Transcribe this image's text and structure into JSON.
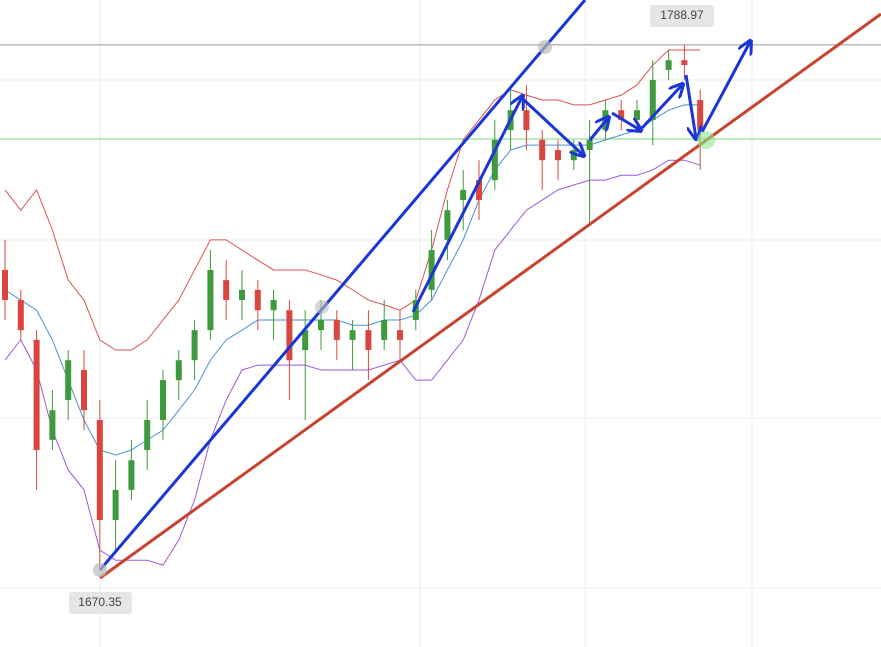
{
  "chart_data": {
    "type": "candlestick",
    "categories": [
      null,
      null,
      null,
      null,
      null,
      null,
      null,
      null,
      null,
      null,
      null,
      null,
      null,
      null,
      null,
      null,
      null,
      null,
      null,
      null,
      null,
      null,
      null,
      null,
      null,
      null,
      null,
      null,
      null,
      null,
      null,
      null,
      null,
      null,
      null,
      null,
      null,
      null,
      null,
      null,
      null,
      null,
      null,
      null,
      null
    ],
    "open": [
      1738.1,
      1731.3,
      1722.3,
      1699.7,
      1708.7,
      1715.5,
      1704.2,
      1681.6,
      1688.4,
      1697.4,
      1704.2,
      1713.2,
      1717.7,
      1724.5,
      1735.8,
      1731.3,
      1733.6,
      1729.0,
      1729.0,
      1720.0,
      1724.5,
      1726.8,
      1722.3,
      1724.5,
      1722.3,
      1724.5,
      1726.8,
      1733.6,
      1744.9,
      1753.9,
      1758.4,
      1758.4,
      1769.7,
      1774.2,
      1767.5,
      1765.2,
      1762.9,
      1765.2,
      1769.7,
      1774.2,
      1772.0,
      1772.0,
      1783.3,
      1785.5,
      1776.5
    ],
    "high": [
      1744.9,
      1733.6,
      1724.5,
      1711.0,
      1720.0,
      1720.0,
      1708.7,
      1695.1,
      1699.7,
      1708.7,
      1715.5,
      1720.0,
      1726.8,
      1742.6,
      1740.3,
      1738.1,
      1735.8,
      1733.6,
      1731.3,
      1729.0,
      1731.3,
      1729.0,
      1726.8,
      1729.0,
      1731.3,
      1729.0,
      1733.6,
      1747.1,
      1753.9,
      1760.7,
      1762.9,
      1772.0,
      1778.8,
      1779.9,
      1769.7,
      1767.5,
      1767.5,
      1772.0,
      1776.5,
      1776.5,
      1776.5,
      1785.5,
      1787.8,
      1788.97,
      1778.8
    ],
    "low": [
      1726.8,
      1722.3,
      1688.4,
      1697.4,
      1704.2,
      1701.9,
      1670.35,
      1674.8,
      1686.1,
      1692.9,
      1699.7,
      1708.7,
      1713.2,
      1722.3,
      1726.8,
      1726.8,
      1724.5,
      1722.3,
      1708.7,
      1704.2,
      1720.0,
      1717.7,
      1715.5,
      1713.2,
      1720.0,
      1717.7,
      1724.5,
      1731.3,
      1740.3,
      1747.1,
      1749.4,
      1756.2,
      1765.2,
      1765.2,
      1756.2,
      1758.4,
      1760.7,
      1748.3,
      1767.5,
      1769.7,
      1769.7,
      1766.3,
      1781.0,
      1781.0,
      1760.7
    ],
    "close": [
      1731.3,
      1724.5,
      1697.4,
      1706.4,
      1717.7,
      1706.4,
      1681.6,
      1688.4,
      1695.1,
      1704.2,
      1713.2,
      1717.7,
      1724.5,
      1738.1,
      1731.3,
      1733.6,
      1729.0,
      1731.3,
      1717.7,
      1724.5,
      1726.8,
      1722.3,
      1724.5,
      1720.0,
      1726.8,
      1722.3,
      1731.3,
      1742.6,
      1751.6,
      1756.2,
      1753.9,
      1767.5,
      1774.2,
      1769.7,
      1762.9,
      1762.9,
      1765.2,
      1767.5,
      1774.2,
      1772.0,
      1774.2,
      1781.0,
      1785.5,
      1784.4,
      1769.7
    ],
    "up_color": "#3d9a3d",
    "down_color": "#d9463f",
    "series": [
      {
        "color": "#d9534f",
        "values": [
          1756.2,
          1751.6,
          1756.2,
          1747.1,
          1735.8,
          1731.3,
          1722.3,
          1720.0,
          1720.0,
          1722.3,
          1726.8,
          1731.3,
          1738.1,
          1744.9,
          1744.9,
          1742.6,
          1740.3,
          1738.1,
          1738.1,
          1738.1,
          1737.0,
          1735.8,
          1733.6,
          1731.3,
          1730.2,
          1729.0,
          1731.3,
          1742.6,
          1756.2,
          1767.5,
          1772.0,
          1776.5,
          1778.8,
          1777.6,
          1776.5,
          1776.5,
          1775.4,
          1775.4,
          1776.5,
          1777.6,
          1779.9,
          1784.4,
          1787.8,
          1787.8,
          1787.8
        ]
      },
      {
        "color": "#4a90d9",
        "values": [
          1733.6,
          1731.3,
          1729.0,
          1722.3,
          1713.2,
          1704.2,
          1697.4,
          1696.3,
          1697.4,
          1699.7,
          1701.9,
          1706.4,
          1711.0,
          1717.7,
          1722.3,
          1724.5,
          1726.8,
          1726.8,
          1726.8,
          1726.8,
          1726.8,
          1726.8,
          1725.6,
          1725.6,
          1726.8,
          1726.8,
          1727.9,
          1731.3,
          1738.1,
          1744.9,
          1753.9,
          1760.7,
          1765.2,
          1766.3,
          1766.3,
          1766.3,
          1766.3,
          1766.3,
          1767.5,
          1768.6,
          1769.7,
          1772.0,
          1774.2,
          1775.4,
          1775.4
        ]
      },
      {
        "color": "#9b59d6",
        "values": [
          1717.7,
          1722.3,
          1715.5,
          1701.9,
          1692.9,
          1688.4,
          1674.8,
          1672.5,
          1672.5,
          1672.5,
          1671.4,
          1677.1,
          1686.1,
          1699.7,
          1708.7,
          1715.5,
          1716.6,
          1716.6,
          1716.6,
          1716.6,
          1715.5,
          1715.5,
          1715.5,
          1715.5,
          1716.6,
          1717.7,
          1713.2,
          1713.2,
          1717.7,
          1722.3,
          1731.3,
          1742.6,
          1747.1,
          1751.6,
          1753.9,
          1756.2,
          1757.3,
          1758.4,
          1758.4,
          1759.5,
          1759.5,
          1760.7,
          1762.9,
          1762.9,
          1761.8
        ]
      }
    ],
    "price_line": 1767.7,
    "price_line_color": "#7fd47f",
    "ylim": [
      1652.9,
      1799.1
    ]
  }
}
